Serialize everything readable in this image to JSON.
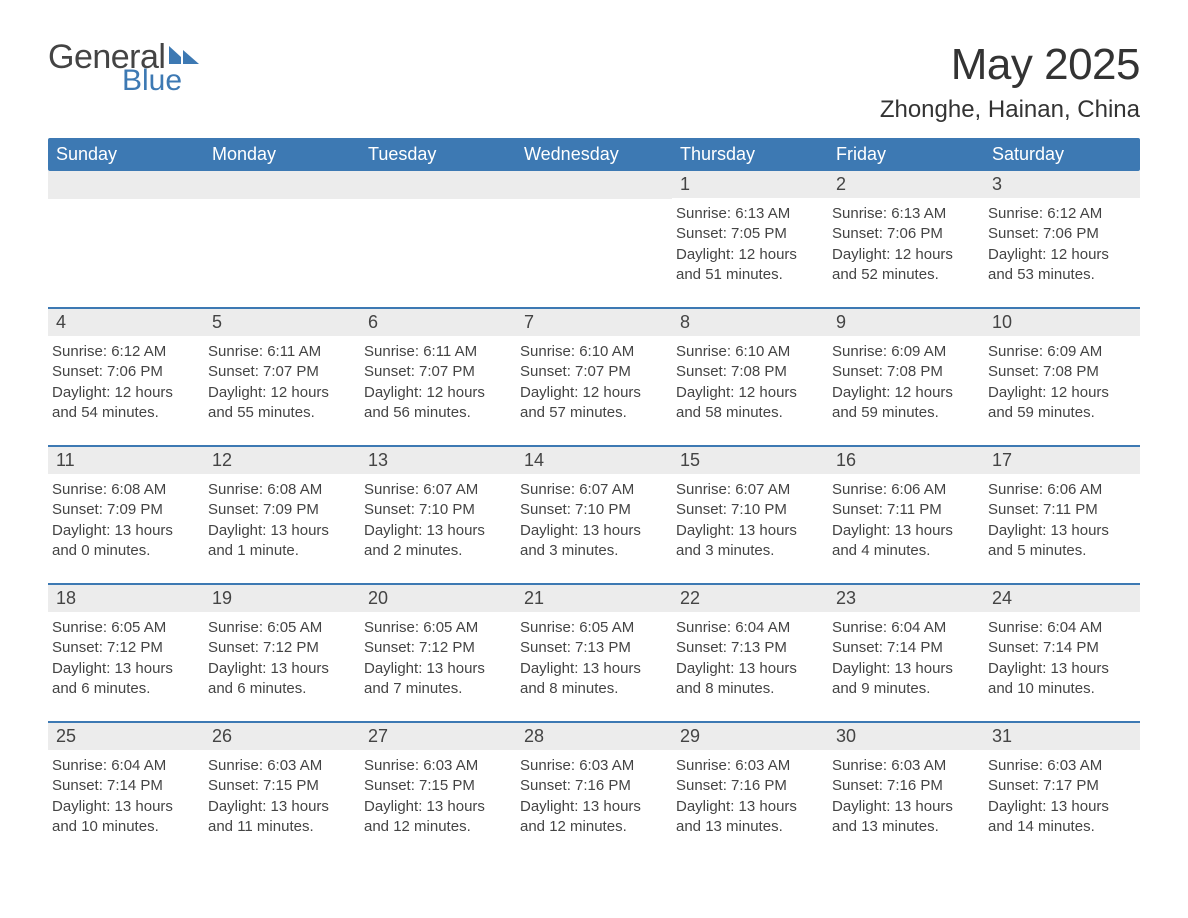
{
  "logo": {
    "word1": "General",
    "word2": "Blue",
    "flag_color": "#3d79b3"
  },
  "title": "May 2025",
  "location": "Zhonghe, Hainan, China",
  "colors": {
    "header_bg": "#3d79b3",
    "header_text": "#ffffff",
    "daynum_bg": "#ececec",
    "row_border": "#3d79b3",
    "body_text": "#444444",
    "background": "#ffffff"
  },
  "weekdays": [
    "Sunday",
    "Monday",
    "Tuesday",
    "Wednesday",
    "Thursday",
    "Friday",
    "Saturday"
  ],
  "weeks": [
    [
      {
        "blank": true
      },
      {
        "blank": true
      },
      {
        "blank": true
      },
      {
        "blank": true
      },
      {
        "n": "1",
        "sunrise": "6:13 AM",
        "sunset": "7:05 PM",
        "daylight": "12 hours and 51 minutes."
      },
      {
        "n": "2",
        "sunrise": "6:13 AM",
        "sunset": "7:06 PM",
        "daylight": "12 hours and 52 minutes."
      },
      {
        "n": "3",
        "sunrise": "6:12 AM",
        "sunset": "7:06 PM",
        "daylight": "12 hours and 53 minutes."
      }
    ],
    [
      {
        "n": "4",
        "sunrise": "6:12 AM",
        "sunset": "7:06 PM",
        "daylight": "12 hours and 54 minutes."
      },
      {
        "n": "5",
        "sunrise": "6:11 AM",
        "sunset": "7:07 PM",
        "daylight": "12 hours and 55 minutes."
      },
      {
        "n": "6",
        "sunrise": "6:11 AM",
        "sunset": "7:07 PM",
        "daylight": "12 hours and 56 minutes."
      },
      {
        "n": "7",
        "sunrise": "6:10 AM",
        "sunset": "7:07 PM",
        "daylight": "12 hours and 57 minutes."
      },
      {
        "n": "8",
        "sunrise": "6:10 AM",
        "sunset": "7:08 PM",
        "daylight": "12 hours and 58 minutes."
      },
      {
        "n": "9",
        "sunrise": "6:09 AM",
        "sunset": "7:08 PM",
        "daylight": "12 hours and 59 minutes."
      },
      {
        "n": "10",
        "sunrise": "6:09 AM",
        "sunset": "7:08 PM",
        "daylight": "12 hours and 59 minutes."
      }
    ],
    [
      {
        "n": "11",
        "sunrise": "6:08 AM",
        "sunset": "7:09 PM",
        "daylight": "13 hours and 0 minutes."
      },
      {
        "n": "12",
        "sunrise": "6:08 AM",
        "sunset": "7:09 PM",
        "daylight": "13 hours and 1 minute."
      },
      {
        "n": "13",
        "sunrise": "6:07 AM",
        "sunset": "7:10 PM",
        "daylight": "13 hours and 2 minutes."
      },
      {
        "n": "14",
        "sunrise": "6:07 AM",
        "sunset": "7:10 PM",
        "daylight": "13 hours and 3 minutes."
      },
      {
        "n": "15",
        "sunrise": "6:07 AM",
        "sunset": "7:10 PM",
        "daylight": "13 hours and 3 minutes."
      },
      {
        "n": "16",
        "sunrise": "6:06 AM",
        "sunset": "7:11 PM",
        "daylight": "13 hours and 4 minutes."
      },
      {
        "n": "17",
        "sunrise": "6:06 AM",
        "sunset": "7:11 PM",
        "daylight": "13 hours and 5 minutes."
      }
    ],
    [
      {
        "n": "18",
        "sunrise": "6:05 AM",
        "sunset": "7:12 PM",
        "daylight": "13 hours and 6 minutes."
      },
      {
        "n": "19",
        "sunrise": "6:05 AM",
        "sunset": "7:12 PM",
        "daylight": "13 hours and 6 minutes."
      },
      {
        "n": "20",
        "sunrise": "6:05 AM",
        "sunset": "7:12 PM",
        "daylight": "13 hours and 7 minutes."
      },
      {
        "n": "21",
        "sunrise": "6:05 AM",
        "sunset": "7:13 PM",
        "daylight": "13 hours and 8 minutes."
      },
      {
        "n": "22",
        "sunrise": "6:04 AM",
        "sunset": "7:13 PM",
        "daylight": "13 hours and 8 minutes."
      },
      {
        "n": "23",
        "sunrise": "6:04 AM",
        "sunset": "7:14 PM",
        "daylight": "13 hours and 9 minutes."
      },
      {
        "n": "24",
        "sunrise": "6:04 AM",
        "sunset": "7:14 PM",
        "daylight": "13 hours and 10 minutes."
      }
    ],
    [
      {
        "n": "25",
        "sunrise": "6:04 AM",
        "sunset": "7:14 PM",
        "daylight": "13 hours and 10 minutes."
      },
      {
        "n": "26",
        "sunrise": "6:03 AM",
        "sunset": "7:15 PM",
        "daylight": "13 hours and 11 minutes."
      },
      {
        "n": "27",
        "sunrise": "6:03 AM",
        "sunset": "7:15 PM",
        "daylight": "13 hours and 12 minutes."
      },
      {
        "n": "28",
        "sunrise": "6:03 AM",
        "sunset": "7:16 PM",
        "daylight": "13 hours and 12 minutes."
      },
      {
        "n": "29",
        "sunrise": "6:03 AM",
        "sunset": "7:16 PM",
        "daylight": "13 hours and 13 minutes."
      },
      {
        "n": "30",
        "sunrise": "6:03 AM",
        "sunset": "7:16 PM",
        "daylight": "13 hours and 13 minutes."
      },
      {
        "n": "31",
        "sunrise": "6:03 AM",
        "sunset": "7:17 PM",
        "daylight": "13 hours and 14 minutes."
      }
    ]
  ],
  "labels": {
    "sunrise": "Sunrise: ",
    "sunset": "Sunset: ",
    "daylight": "Daylight: "
  }
}
